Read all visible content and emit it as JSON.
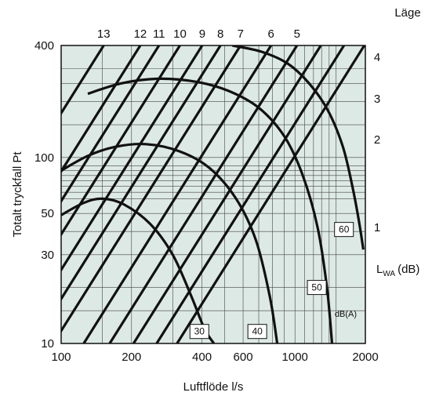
{
  "chart_data": {
    "type": "line",
    "title": "",
    "xlabel": "Luftflöde l/s",
    "ylabel": "Totalt tryckfall Pt",
    "x_scale": "log",
    "y_scale": "log",
    "xlim": [
      100,
      2000
    ],
    "ylim": [
      10,
      400
    ],
    "grid": true,
    "background_color": "#dde9e4",
    "x_ticks": [
      {
        "value": 100,
        "label": "100"
      },
      {
        "value": 200,
        "label": "200"
      },
      {
        "value": 400,
        "label": "400"
      },
      {
        "value": 600,
        "label": "600"
      },
      {
        "value": 1000,
        "label": "1000"
      },
      {
        "value": 2000,
        "label": "2000"
      }
    ],
    "y_ticks": [
      {
        "value": 10,
        "label": "10"
      },
      {
        "value": 30,
        "label": "30"
      },
      {
        "value": 50,
        "label": "50"
      },
      {
        "value": 100,
        "label": "100"
      },
      {
        "value": 400,
        "label": "400"
      }
    ],
    "x_grid": [
      100,
      150,
      200,
      300,
      400,
      500,
      600,
      700,
      800,
      900,
      1000,
      1100,
      1200,
      1300,
      1400,
      1500,
      2000
    ],
    "y_grid": [
      10,
      15,
      20,
      30,
      40,
      50,
      60,
      65,
      70,
      75,
      80,
      85,
      90,
      100,
      150,
      200,
      250,
      300,
      400
    ],
    "lage_title": "Läge",
    "lage_lines": [
      {
        "label": "13",
        "x_at_top": 152
      },
      {
        "label": "12",
        "x_at_top": 218
      },
      {
        "label": "11",
        "x_at_top": 262
      },
      {
        "label": "10",
        "x_at_top": 322
      },
      {
        "label": "9",
        "x_at_top": 401
      },
      {
        "label": "8",
        "x_at_top": 480
      },
      {
        "label": "7",
        "x_at_top": 585
      },
      {
        "label": "6",
        "x_at_top": 790
      },
      {
        "label": "5",
        "x_at_top": 1020
      },
      {
        "label": "",
        "x_at_top": 1290
      },
      {
        "label": "",
        "x_at_top": 1620
      },
      {
        "label": "",
        "x_at_top": 1980
      }
    ],
    "lage_slope": 2,
    "level_curves": [
      {
        "label": "1",
        "points": [
          [
            100,
            49
          ],
          [
            125,
            57
          ],
          [
            150,
            60
          ],
          [
            185,
            56
          ],
          [
            240,
            44
          ],
          [
            300,
            30
          ],
          [
            360,
            18
          ],
          [
            410,
            12
          ],
          [
            450,
            10
          ]
        ]
      },
      {
        "label": "2",
        "points": [
          [
            100,
            85
          ],
          [
            130,
            102
          ],
          [
            170,
            114
          ],
          [
            230,
            118
          ],
          [
            320,
            108
          ],
          [
            430,
            88
          ],
          [
            560,
            60
          ],
          [
            680,
            36
          ],
          [
            780,
            18
          ],
          [
            840,
            10
          ]
        ]
      },
      {
        "label": "3",
        "points": [
          [
            130,
            220
          ],
          [
            180,
            250
          ],
          [
            260,
            265
          ],
          [
            380,
            255
          ],
          [
            520,
            228
          ],
          [
            700,
            185
          ],
          [
            900,
            130
          ],
          [
            1080,
            80
          ],
          [
            1250,
            42
          ],
          [
            1370,
            20
          ],
          [
            1440,
            10
          ]
        ]
      },
      {
        "label": "4",
        "points": [
          [
            540,
            400
          ],
          [
            720,
            370
          ],
          [
            930,
            320
          ],
          [
            1150,
            250
          ],
          [
            1380,
            180
          ],
          [
            1600,
            115
          ],
          [
            1760,
            70
          ],
          [
            1880,
            45
          ],
          [
            1960,
            32
          ]
        ]
      }
    ],
    "level_labels": [
      "4",
      "3",
      "2",
      "1"
    ],
    "lwa_label": "L",
    "lwa_sub": "WA",
    "lwa_unit": "(dB)",
    "db_boxes": [
      {
        "label": "30",
        "x": 390,
        "y": 11.6
      },
      {
        "label": "40",
        "x": 690,
        "y": 11.6
      },
      {
        "label": "50",
        "x": 1240,
        "y": 20
      },
      {
        "label": "60",
        "x": 1620,
        "y": 41
      }
    ],
    "db_unit": "dB(A)"
  }
}
